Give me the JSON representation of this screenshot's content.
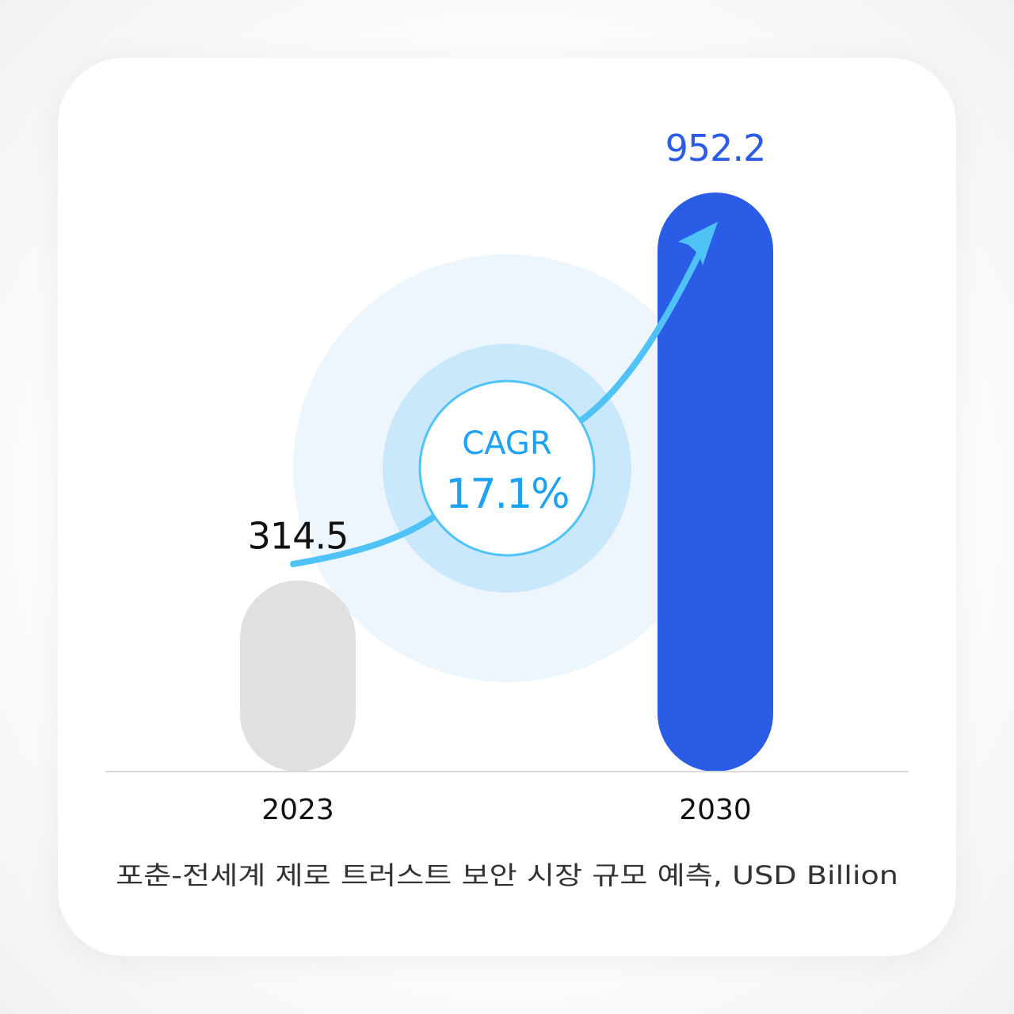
{
  "chart_data": {
    "type": "bar",
    "categories": [
      "2023",
      "2030"
    ],
    "values": [
      314.5,
      952.2
    ],
    "value_labels": [
      "314.5",
      "952.2"
    ],
    "caption": "포춘-전세계 제로 트러스트 보안 시장 규모 예측, USD Billion",
    "annotation": {
      "title": "CAGR",
      "value": "17.1%"
    },
    "ylim": [
      0,
      952.2
    ],
    "grid": false,
    "legend": "none"
  },
  "colors": {
    "bar_2023": "#e0e0e0",
    "bar_2030": "#2b5ce6",
    "label_2023": "#111111",
    "label_2030": "#2b5ce6",
    "arrow": "#4fc3f7",
    "cagr_text": "#1da1f2",
    "halo_outer": "#eef6fd",
    "halo_inner": "#c9e8fb",
    "axis": "#d9d9d9"
  }
}
